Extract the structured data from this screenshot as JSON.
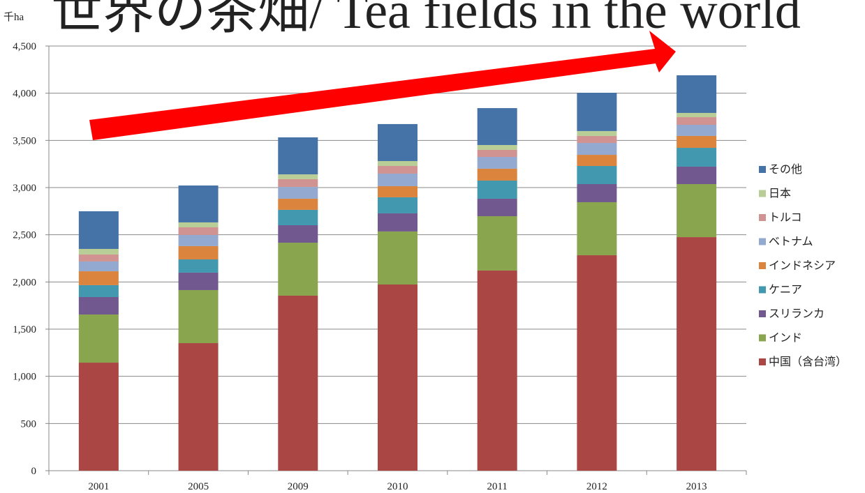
{
  "chart_data": {
    "type": "stacked_bar",
    "title": "世界の茶畑/ Tea fields in the world",
    "y_label": "千ha",
    "categories": [
      "2001",
      "2005",
      "2009",
      "2010",
      "2011",
      "2012",
      "2013"
    ],
    "series": [
      {
        "name": "中国（含台湾）",
        "color": "#aa4643",
        "values": [
          1145,
          1352,
          1855,
          1973,
          2121,
          2283,
          2475
        ]
      },
      {
        "name": "インド",
        "color": "#89a54e",
        "values": [
          510,
          562,
          561,
          562,
          576,
          562,
          562
        ]
      },
      {
        "name": "スリランカ",
        "color": "#71588f",
        "values": [
          185,
          185,
          185,
          192,
          185,
          192,
          185
        ]
      },
      {
        "name": "ケニア",
        "color": "#4198af",
        "values": [
          126,
          140,
          163,
          170,
          192,
          192,
          199
        ]
      },
      {
        "name": "インドネシア",
        "color": "#db843d",
        "values": [
          147,
          141,
          118,
          118,
          126,
          118,
          126
        ]
      },
      {
        "name": "ベトナム",
        "color": "#93a9cf",
        "values": [
          104,
          118,
          125,
          133,
          125,
          126,
          118
        ]
      },
      {
        "name": "トルコ",
        "color": "#d19392",
        "values": [
          74,
          81,
          82,
          81,
          74,
          74,
          81
        ]
      },
      {
        "name": "日本",
        "color": "#b9cd96",
        "values": [
          59,
          52,
          51,
          52,
          52,
          52,
          45
        ]
      },
      {
        "name": "その他",
        "color": "#4572a7",
        "values": [
          399,
          391,
          392,
          392,
          391,
          406,
          399
        ]
      }
    ],
    "ylim": [
      0,
      4500
    ],
    "yticks": [
      0,
      500,
      {
        "value": 1000,
        "label": "1,000"
      },
      {
        "value": 1500,
        "label": "1,500"
      },
      {
        "value": 2000,
        "label": "2,000"
      },
      {
        "value": 2500,
        "label": "2,500"
      },
      {
        "value": 3000,
        "label": "3,000"
      },
      {
        "value": 3500,
        "label": "3,500"
      },
      {
        "value": 4000,
        "label": "4,000"
      },
      {
        "value": 4500,
        "label": "4,500"
      }
    ],
    "grid": true,
    "legend": "right"
  }
}
